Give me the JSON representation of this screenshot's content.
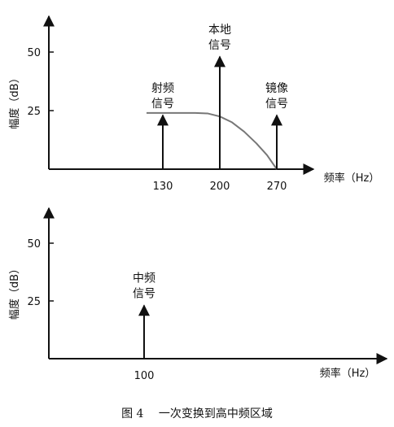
{
  "caption": "图 4　 一次变换到高中频区域",
  "chart_data": [
    {
      "type": "line",
      "xlabel": "频率（Hz）",
      "ylabel": "幅度（dB）",
      "x_ticks": [
        130,
        200,
        270
      ],
      "y_ticks": [
        25,
        50
      ],
      "xlim": [
        0,
        400
      ],
      "ylim": [
        0,
        62
      ],
      "signals": [
        {
          "label_lines": [
            "射频",
            "信号"
          ],
          "x": 130,
          "y": 23
        },
        {
          "label_lines": [
            "本地",
            "信号"
          ],
          "x": 200,
          "y": 48
        },
        {
          "label_lines": [
            "镜像",
            "信号"
          ],
          "x": 270,
          "y": 23
        }
      ],
      "filter_curve": [
        [
          110,
          24
        ],
        [
          170,
          24
        ],
        [
          185,
          23.8
        ],
        [
          200,
          22.5
        ],
        [
          215,
          20
        ],
        [
          230,
          16
        ],
        [
          245,
          11
        ],
        [
          258,
          6
        ],
        [
          270,
          0
        ]
      ],
      "filter_color": "#777777"
    },
    {
      "type": "line",
      "xlabel": "频率（Hz）",
      "ylabel": "幅度（dB）",
      "x_ticks": [
        100
      ],
      "y_ticks": [
        25,
        50
      ],
      "xlim": [
        0,
        400
      ],
      "ylim": [
        0,
        62
      ],
      "signals": [
        {
          "label_lines": [
            "中频",
            "信号"
          ],
          "x": 100,
          "y": 23
        }
      ]
    }
  ]
}
